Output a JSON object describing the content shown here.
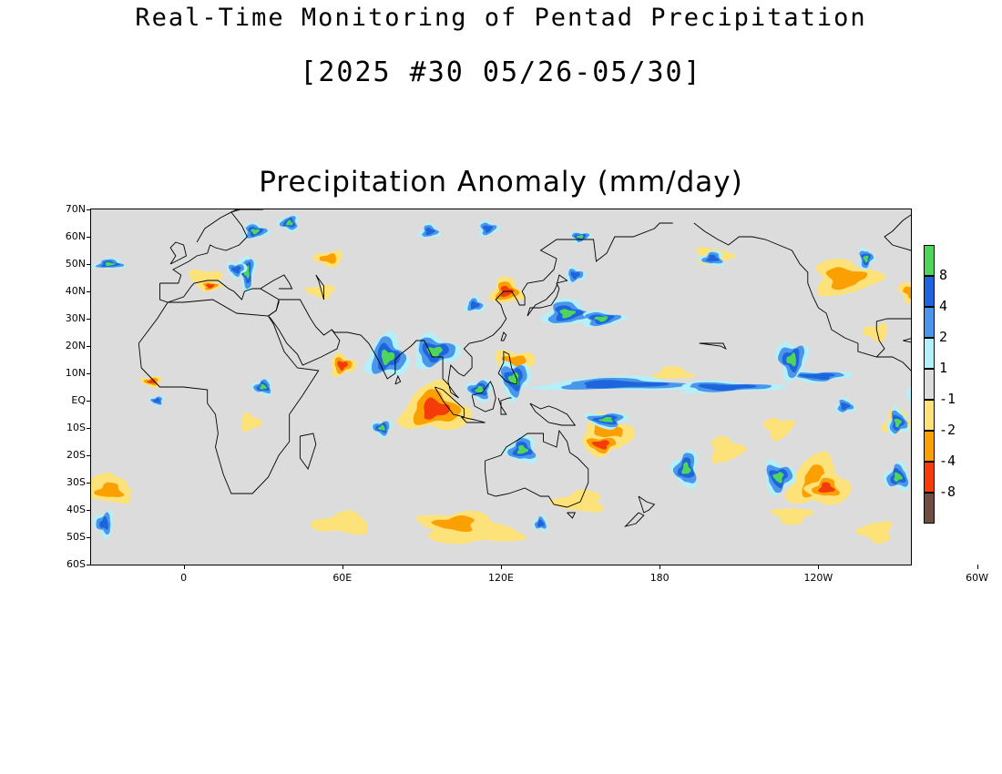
{
  "header": {
    "title": "Real-Time Monitoring of Pentad Precipitation",
    "period": "[2025 #30 05/26-05/30]"
  },
  "map": {
    "subtitle": "Precipitation Anomaly (mm/day)",
    "lat_labels": [
      "70N",
      "60N",
      "50N",
      "40N",
      "30N",
      "20N",
      "10N",
      "EQ",
      "10S",
      "20S",
      "30S",
      "40S",
      "50S",
      "60S"
    ],
    "lon_labels": [
      "0",
      "60E",
      "120E",
      "180",
      "120W",
      "60W"
    ],
    "lat_range": [
      -60,
      70
    ],
    "lon_range": [
      -35,
      275
    ]
  },
  "colorbar": {
    "colors": [
      "#4fd65a",
      "#1e64dc",
      "#4a96ea",
      "#b4f0fa",
      "#dcdcdc",
      "#fde27a",
      "#fba002",
      "#f43c0a",
      "#6e4e40"
    ],
    "labels": [
      "8",
      "4",
      "2",
      "1",
      "-1",
      "-2",
      "-4",
      "-8"
    ]
  },
  "colors": {
    "land_background": "#dcdcdc",
    "coast": "#000000"
  }
}
